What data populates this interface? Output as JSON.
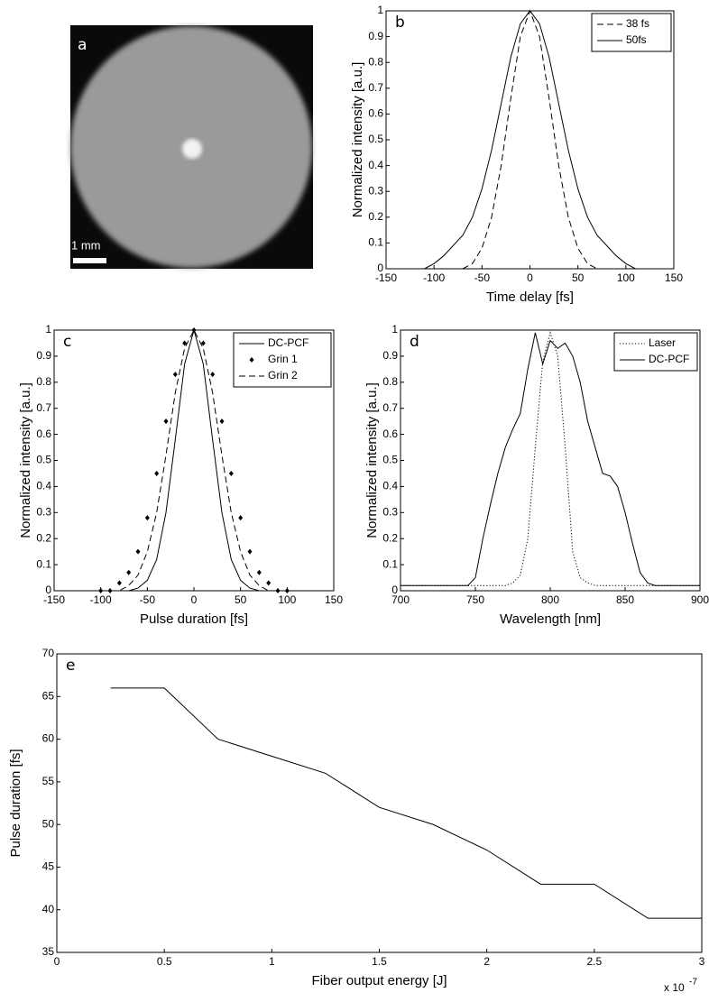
{
  "image_panel": {
    "panel_label": "a",
    "scale_label": "1 mm"
  },
  "chart_data": [
    {
      "type": "line",
      "panel_label": "b",
      "x_label": "Time delay [fs]",
      "y_label": "Normalized intensity [a.u.]",
      "xlim": [
        -150,
        150
      ],
      "xticks": [
        -150,
        -100,
        -50,
        0,
        50,
        100,
        150
      ],
      "ylim": [
        0,
        1
      ],
      "yticks": [
        0,
        0.1,
        0.2,
        0.3,
        0.4,
        0.5,
        0.6,
        0.7,
        0.8,
        0.9,
        1
      ],
      "legend": "upper right",
      "x": [
        -110,
        -100,
        -90,
        -80,
        -70,
        -60,
        -50,
        -40,
        -30,
        -20,
        -10,
        0,
        10,
        20,
        30,
        40,
        50,
        60,
        70,
        80,
        90,
        100,
        110
      ],
      "series": [
        {
          "name": "38 fs",
          "color": "#000000",
          "style": "dashed",
          "values": [
            null,
            null,
            null,
            null,
            0,
            0.02,
            0.08,
            0.2,
            0.4,
            0.66,
            0.9,
            1,
            0.9,
            0.66,
            0.4,
            0.2,
            0.08,
            0.02,
            0,
            null,
            null,
            null,
            null
          ]
        },
        {
          "name": "50fs",
          "color": "#000000",
          "style": "solid",
          "values": [
            0,
            0.02,
            0.05,
            0.09,
            0.13,
            0.2,
            0.31,
            0.46,
            0.64,
            0.82,
            0.95,
            1,
            0.95,
            0.82,
            0.64,
            0.46,
            0.31,
            0.2,
            0.13,
            0.09,
            0.05,
            0.02,
            0
          ]
        }
      ]
    },
    {
      "type": "line",
      "panel_label": "c",
      "x_label": "Pulse duration [fs]",
      "y_label": "Normalized intensity [a.u.]",
      "xlim": [
        -150,
        150
      ],
      "xticks": [
        -150,
        -100,
        -50,
        0,
        50,
        100,
        150
      ],
      "ylim": [
        0,
        1
      ],
      "yticks": [
        0,
        0.1,
        0.2,
        0.3,
        0.4,
        0.5,
        0.6,
        0.7,
        0.8,
        0.9,
        1
      ],
      "legend": "upper right",
      "x": [
        -100,
        -90,
        -80,
        -70,
        -60,
        -50,
        -40,
        -30,
        -20,
        -10,
        0,
        10,
        20,
        30,
        40,
        50,
        60,
        70,
        80,
        90,
        100
      ],
      "series": [
        {
          "name": "DC-PCF",
          "color": "#000000",
          "style": "solid",
          "values": [
            0,
            0,
            0,
            0,
            0.01,
            0.04,
            0.12,
            0.3,
            0.58,
            0.87,
            1,
            0.87,
            0.58,
            0.3,
            0.12,
            0.04,
            0.01,
            0,
            0,
            0,
            0
          ]
        },
        {
          "name": "Grin 1",
          "color": "#000000",
          "style": "markers",
          "values": [
            0,
            0,
            0.03,
            0.07,
            0.15,
            0.28,
            0.45,
            0.65,
            0.83,
            0.95,
            1,
            0.95,
            0.83,
            0.65,
            0.45,
            0.28,
            0.15,
            0.07,
            0.03,
            0,
            0
          ]
        },
        {
          "name": "Grin 2",
          "color": "#000000",
          "style": "dashed",
          "values": [
            0,
            0,
            0,
            0.02,
            0.06,
            0.15,
            0.3,
            0.52,
            0.76,
            0.93,
            1,
            0.93,
            0.76,
            0.52,
            0.3,
            0.15,
            0.06,
            0.02,
            0,
            0,
            0
          ]
        }
      ]
    },
    {
      "type": "line",
      "panel_label": "d",
      "x_label": "Wavelength [nm]",
      "y_label": "Normalized intensity [a.u.]",
      "xlim": [
        700,
        900
      ],
      "xticks": [
        700,
        750,
        800,
        850,
        900
      ],
      "ylim": [
        0,
        1
      ],
      "yticks": [
        0,
        0.1,
        0.2,
        0.3,
        0.4,
        0.5,
        0.6,
        0.7,
        0.8,
        0.9,
        1
      ],
      "legend": "upper right",
      "x": [
        700,
        705,
        710,
        715,
        720,
        725,
        730,
        735,
        740,
        745,
        750,
        755,
        760,
        765,
        770,
        775,
        780,
        785,
        790,
        795,
        800,
        805,
        810,
        815,
        820,
        825,
        830,
        835,
        840,
        845,
        850,
        855,
        860,
        865,
        870,
        875,
        880,
        885,
        890,
        895,
        900
      ],
      "series": [
        {
          "name": "Laser",
          "color": "#000000",
          "style": "dotted",
          "values": [
            0.02,
            0.02,
            0.02,
            0.02,
            0.02,
            0.02,
            0.02,
            0.02,
            0.02,
            0.02,
            0.02,
            0.02,
            0.02,
            0.02,
            0.02,
            0.03,
            0.06,
            0.2,
            0.55,
            0.88,
            0.99,
            0.9,
            0.55,
            0.15,
            0.05,
            0.03,
            0.02,
            0.02,
            0.02,
            0.02,
            0.02,
            0.02,
            0.02,
            0.02,
            0.02,
            0.02,
            0.02,
            0.02,
            0.02,
            0.02,
            0.02
          ]
        },
        {
          "name": "DC-PCF",
          "color": "#000000",
          "style": "solid",
          "values": [
            0.02,
            0.02,
            0.02,
            0.02,
            0.02,
            0.02,
            0.02,
            0.02,
            0.02,
            0.02,
            0.05,
            0.2,
            0.33,
            0.45,
            0.55,
            0.62,
            0.68,
            0.85,
            0.99,
            0.87,
            0.96,
            0.93,
            0.95,
            0.9,
            0.8,
            0.65,
            0.55,
            0.45,
            0.44,
            0.4,
            0.3,
            0.18,
            0.07,
            0.03,
            0.02,
            0.02,
            0.02,
            0.02,
            0.02,
            0.02,
            0.02
          ]
        }
      ]
    },
    {
      "type": "line",
      "panel_label": "e",
      "x_label": "Fiber output energy [J]",
      "y_label": "Pulse duration [fs]",
      "x_multiplier": {
        "base": "x 10",
        "exponent": "-7"
      },
      "xlim": [
        0,
        3
      ],
      "xticks": [
        0,
        0.5,
        1,
        1.5,
        2,
        2.5,
        3
      ],
      "ylim": [
        35,
        70
      ],
      "yticks": [
        35,
        40,
        45,
        50,
        55,
        60,
        65,
        70
      ],
      "x": [
        0.25,
        0.5,
        0.75,
        1,
        1.25,
        1.5,
        1.75,
        2,
        2.25,
        2.5,
        2.75,
        3
      ],
      "series": [
        {
          "name": null,
          "color": "#000000",
          "style": "solid",
          "values": [
            66,
            66,
            60,
            58,
            56,
            52,
            50,
            47,
            43,
            43,
            39,
            39
          ]
        }
      ]
    }
  ]
}
